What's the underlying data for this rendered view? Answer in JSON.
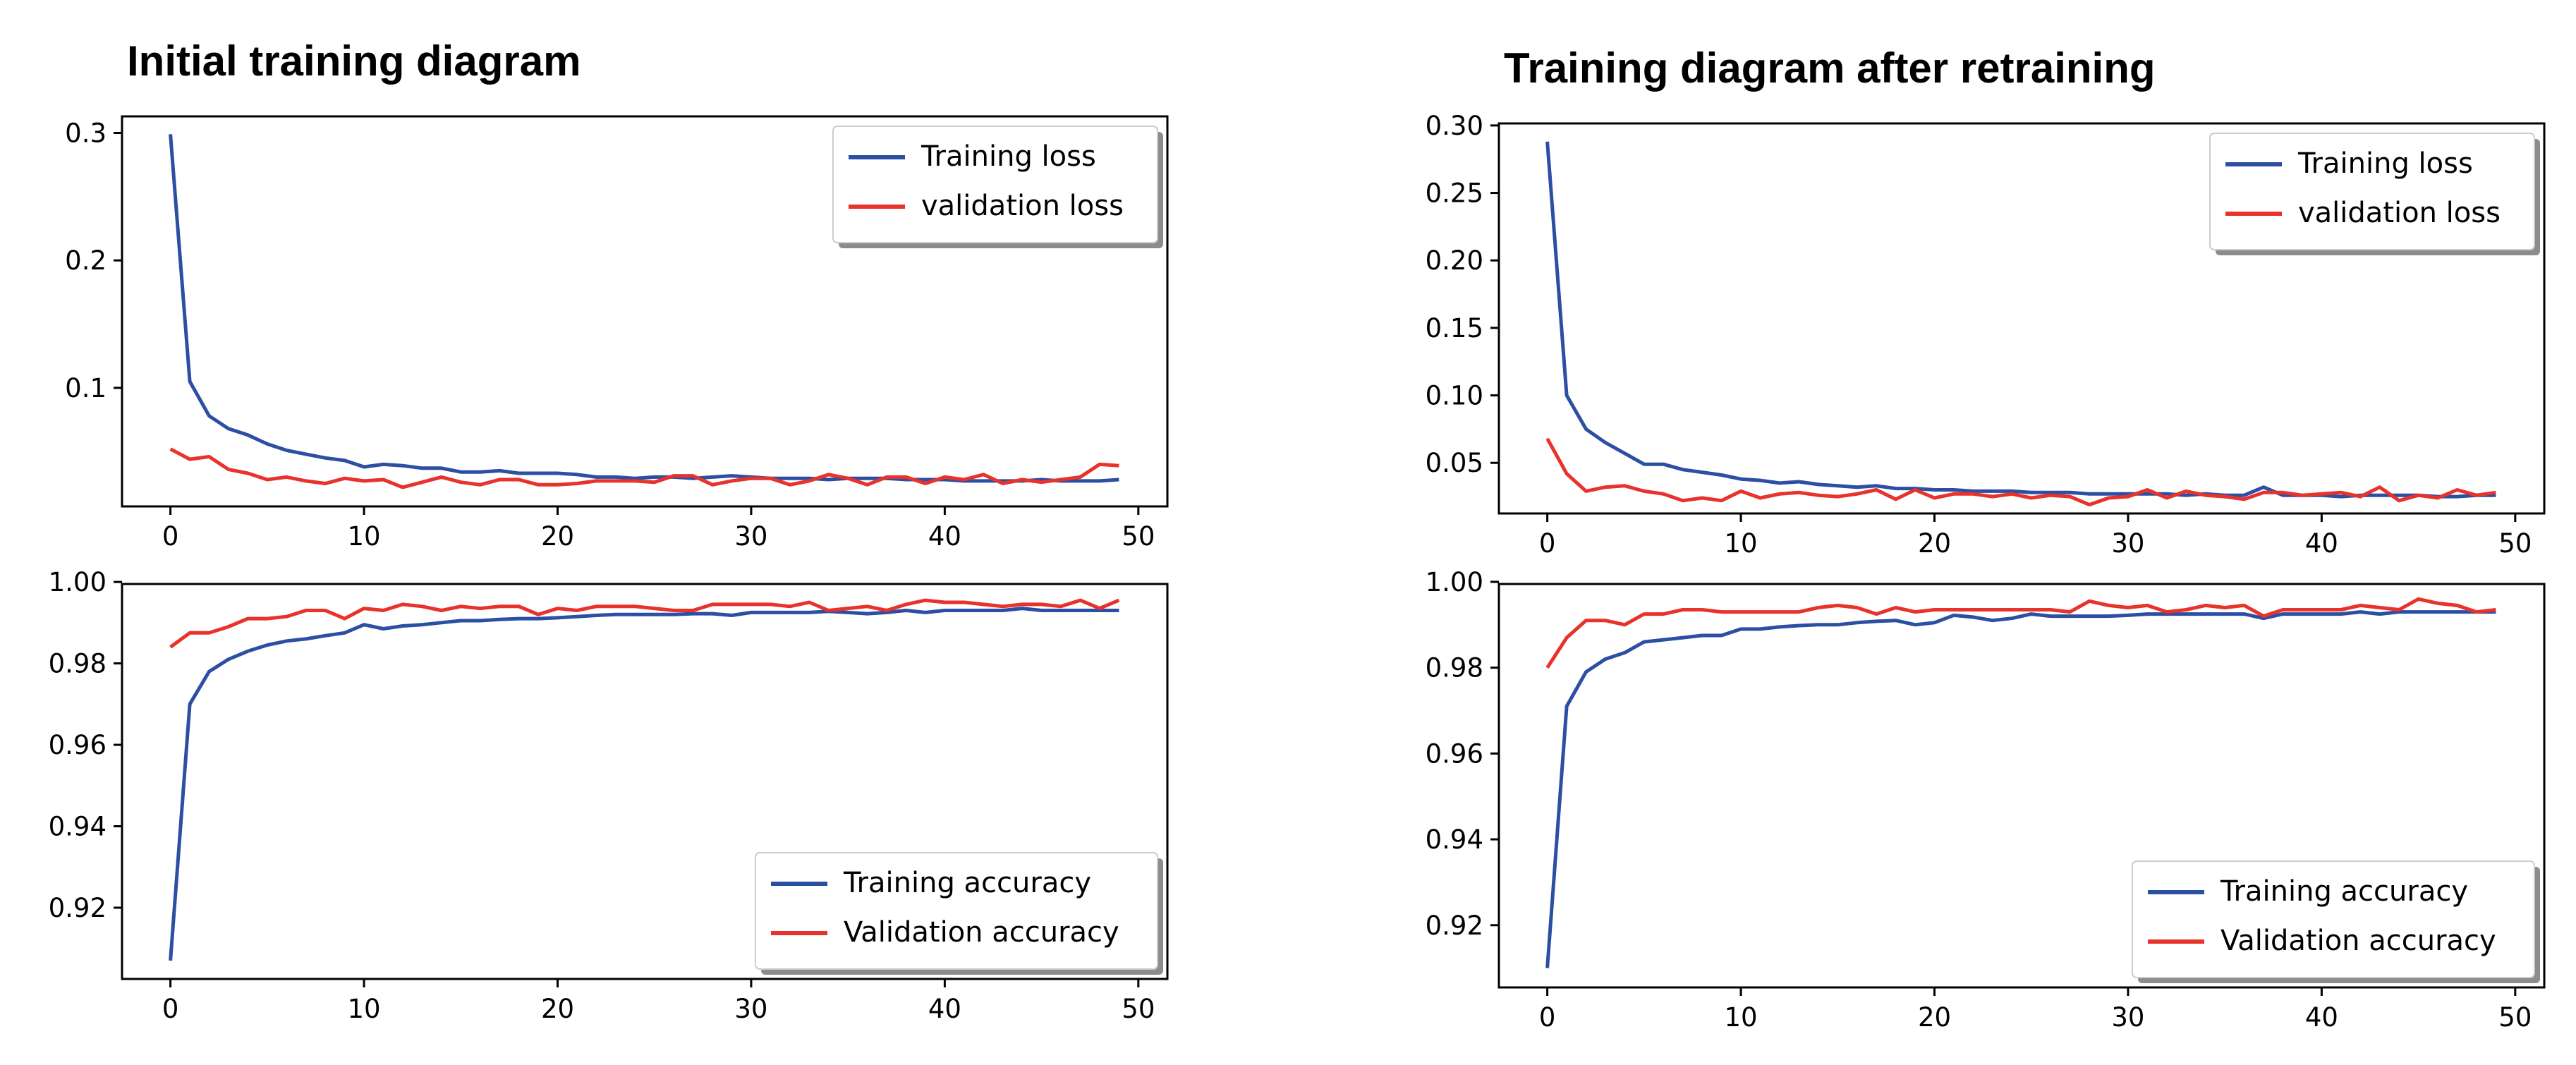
{
  "titles": {
    "left": "Initial training diagram",
    "right": "Training diagram after retraining"
  },
  "colors": {
    "training": "#2c4fa3",
    "validation": "#e8322c"
  },
  "chart_data": [
    {
      "id": "initial-loss",
      "type": "line",
      "title": "",
      "xlim": [
        -2.5,
        51.5
      ],
      "ylim": [
        0.007,
        0.313
      ],
      "xticks": [
        0,
        10,
        20,
        30,
        40,
        50
      ],
      "yticks": [
        0.1,
        0.2,
        0.3
      ],
      "ytick_labels": [
        "0.1",
        "0.2",
        "0.3"
      ],
      "legend": {
        "position": "upper right"
      },
      "series": [
        {
          "name": "Training loss",
          "key": "training",
          "values": [
            0.299,
            0.105,
            0.078,
            0.068,
            0.063,
            0.056,
            0.051,
            0.048,
            0.045,
            0.043,
            0.038,
            0.04,
            0.039,
            0.037,
            0.037,
            0.034,
            0.034,
            0.035,
            0.033,
            0.033,
            0.033,
            0.032,
            0.03,
            0.03,
            0.029,
            0.03,
            0.03,
            0.029,
            0.03,
            0.031,
            0.03,
            0.029,
            0.029,
            0.029,
            0.028,
            0.029,
            0.029,
            0.029,
            0.028,
            0.028,
            0.028,
            0.027,
            0.027,
            0.027,
            0.027,
            0.028,
            0.027,
            0.027,
            0.027,
            0.028
          ]
        },
        {
          "name": "validation loss",
          "key": "validation",
          "values": [
            0.052,
            0.044,
            0.046,
            0.036,
            0.033,
            0.028,
            0.03,
            0.027,
            0.025,
            0.029,
            0.027,
            0.028,
            0.022,
            0.026,
            0.03,
            0.026,
            0.024,
            0.028,
            0.028,
            0.024,
            0.024,
            0.025,
            0.027,
            0.027,
            0.027,
            0.026,
            0.031,
            0.031,
            0.024,
            0.027,
            0.029,
            0.029,
            0.024,
            0.027,
            0.032,
            0.029,
            0.024,
            0.03,
            0.03,
            0.025,
            0.03,
            0.028,
            0.032,
            0.025,
            0.028,
            0.026,
            0.028,
            0.03,
            0.04,
            0.039
          ]
        }
      ]
    },
    {
      "id": "initial-accuracy",
      "type": "line",
      "title": "",
      "xlim": [
        -2.5,
        51.5
      ],
      "ylim": [
        0.9025,
        0.9995
      ],
      "xticks": [
        0,
        10,
        20,
        30,
        40,
        50
      ],
      "yticks": [
        0.92,
        0.94,
        0.96,
        0.98,
        1.0
      ],
      "ytick_labels": [
        "0.92",
        "0.94",
        "0.96",
        "0.98",
        "1.00"
      ],
      "legend": {
        "position": "lower right"
      },
      "series": [
        {
          "name": "Training accuracy",
          "key": "training",
          "values": [
            0.907,
            0.97,
            0.978,
            0.981,
            0.983,
            0.9845,
            0.9855,
            0.986,
            0.9868,
            0.9875,
            0.9895,
            0.9885,
            0.9892,
            0.9895,
            0.99,
            0.9905,
            0.9905,
            0.9908,
            0.991,
            0.991,
            0.9912,
            0.9915,
            0.9918,
            0.992,
            0.992,
            0.992,
            0.992,
            0.9922,
            0.9922,
            0.9918,
            0.9925,
            0.9925,
            0.9925,
            0.9925,
            0.9928,
            0.9925,
            0.9922,
            0.9925,
            0.993,
            0.9925,
            0.993,
            0.993,
            0.993,
            0.993,
            0.9935,
            0.993,
            0.993,
            0.993,
            0.993,
            0.993
          ]
        },
        {
          "name": "Validation accuracy",
          "key": "validation",
          "values": [
            0.984,
            0.9875,
            0.9875,
            0.989,
            0.991,
            0.991,
            0.9915,
            0.993,
            0.993,
            0.991,
            0.9935,
            0.993,
            0.9945,
            0.994,
            0.993,
            0.994,
            0.9935,
            0.994,
            0.994,
            0.992,
            0.9935,
            0.993,
            0.994,
            0.994,
            0.994,
            0.9935,
            0.993,
            0.993,
            0.9945,
            0.9945,
            0.9945,
            0.9945,
            0.994,
            0.995,
            0.993,
            0.9935,
            0.994,
            0.993,
            0.9945,
            0.9955,
            0.995,
            0.995,
            0.9945,
            0.994,
            0.9945,
            0.9945,
            0.994,
            0.9955,
            0.9935,
            0.9955
          ]
        }
      ]
    },
    {
      "id": "retrained-loss",
      "type": "line",
      "title": "",
      "xlim": [
        -2.5,
        51.5
      ],
      "ylim": [
        0.0125,
        0.3015
      ],
      "xticks": [
        0,
        10,
        20,
        30,
        40,
        50
      ],
      "yticks": [
        0.05,
        0.1,
        0.15,
        0.2,
        0.25,
        0.3
      ],
      "ytick_labels": [
        "0.05",
        "0.10",
        "0.15",
        "0.20",
        "0.25",
        "0.30"
      ],
      "legend": {
        "position": "upper right"
      },
      "series": [
        {
          "name": "Training loss",
          "key": "training",
          "values": [
            0.288,
            0.1,
            0.075,
            0.065,
            0.057,
            0.049,
            0.049,
            0.045,
            0.043,
            0.041,
            0.038,
            0.037,
            0.035,
            0.036,
            0.034,
            0.033,
            0.032,
            0.033,
            0.031,
            0.031,
            0.03,
            0.03,
            0.029,
            0.029,
            0.029,
            0.028,
            0.028,
            0.028,
            0.027,
            0.027,
            0.027,
            0.027,
            0.027,
            0.026,
            0.027,
            0.026,
            0.026,
            0.032,
            0.026,
            0.026,
            0.026,
            0.025,
            0.026,
            0.026,
            0.026,
            0.026,
            0.025,
            0.025,
            0.026,
            0.026
          ]
        },
        {
          "name": "validation loss",
          "key": "validation",
          "values": [
            0.068,
            0.042,
            0.029,
            0.032,
            0.033,
            0.029,
            0.027,
            0.022,
            0.024,
            0.022,
            0.029,
            0.024,
            0.027,
            0.028,
            0.026,
            0.025,
            0.027,
            0.03,
            0.023,
            0.03,
            0.024,
            0.027,
            0.027,
            0.025,
            0.027,
            0.024,
            0.026,
            0.025,
            0.019,
            0.024,
            0.025,
            0.03,
            0.024,
            0.029,
            0.026,
            0.025,
            0.023,
            0.028,
            0.028,
            0.026,
            0.027,
            0.028,
            0.025,
            0.032,
            0.022,
            0.026,
            0.024,
            0.03,
            0.026,
            0.028
          ]
        }
      ]
    },
    {
      "id": "retrained-accuracy",
      "type": "line",
      "title": "",
      "xlim": [
        -2.5,
        51.5
      ],
      "ylim": [
        0.9055,
        0.9995
      ],
      "xticks": [
        0,
        10,
        20,
        30,
        40,
        50
      ],
      "yticks": [
        0.92,
        0.94,
        0.96,
        0.98,
        1.0
      ],
      "ytick_labels": [
        "0.92",
        "0.94",
        "0.96",
        "0.98",
        "1.00"
      ],
      "legend": {
        "position": "lower right"
      },
      "series": [
        {
          "name": "Training accuracy",
          "key": "training",
          "values": [
            0.91,
            0.971,
            0.979,
            0.982,
            0.9835,
            0.986,
            0.9865,
            0.987,
            0.9875,
            0.9875,
            0.989,
            0.989,
            0.9895,
            0.9898,
            0.99,
            0.99,
            0.9905,
            0.9908,
            0.991,
            0.99,
            0.9905,
            0.9922,
            0.9918,
            0.991,
            0.9915,
            0.9925,
            0.992,
            0.992,
            0.992,
            0.992,
            0.9922,
            0.9925,
            0.9925,
            0.9925,
            0.9925,
            0.9925,
            0.9925,
            0.9915,
            0.9925,
            0.9925,
            0.9925,
            0.9925,
            0.993,
            0.9925,
            0.993,
            0.993,
            0.993,
            0.993,
            0.993,
            0.993
          ]
        },
        {
          "name": "Validation accuracy",
          "key": "validation",
          "values": [
            0.98,
            0.987,
            0.991,
            0.991,
            0.99,
            0.9925,
            0.9925,
            0.9935,
            0.9935,
            0.993,
            0.993,
            0.993,
            0.993,
            0.993,
            0.994,
            0.9945,
            0.994,
            0.9925,
            0.994,
            0.993,
            0.9935,
            0.9935,
            0.9935,
            0.9935,
            0.9935,
            0.9935,
            0.9935,
            0.993,
            0.9955,
            0.9945,
            0.994,
            0.9945,
            0.993,
            0.9935,
            0.9945,
            0.994,
            0.9945,
            0.992,
            0.9935,
            0.9935,
            0.9935,
            0.9935,
            0.9945,
            0.994,
            0.9935,
            0.996,
            0.995,
            0.9945,
            0.993,
            0.9935
          ]
        }
      ]
    }
  ]
}
